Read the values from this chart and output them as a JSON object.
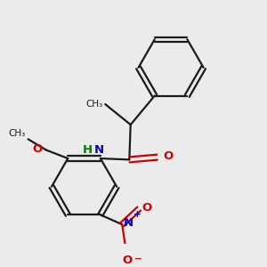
{
  "bg_color": "#ebebeb",
  "bond_color": "#1a1a1a",
  "N_color": "#0000cc",
  "O_color": "#cc0000",
  "H_color": "#007700",
  "line_width": 1.6,
  "dbo": 0.012,
  "fig_w": 3.0,
  "fig_h": 3.0,
  "dpi": 100,
  "xlim": [
    0.0,
    1.0
  ],
  "ylim": [
    0.05,
    1.05
  ]
}
